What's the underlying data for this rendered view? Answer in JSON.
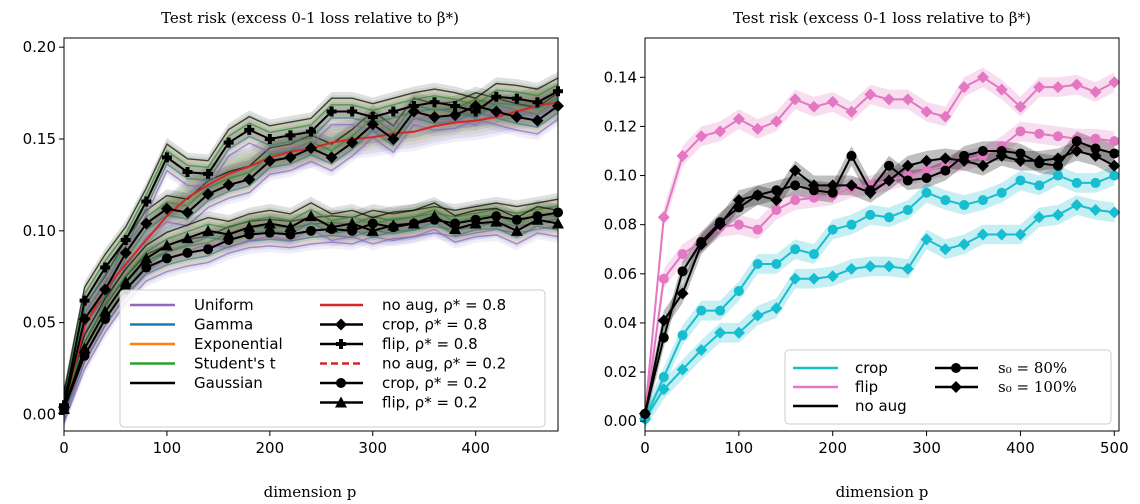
{
  "chart_data": [
    {
      "type": "line",
      "title": "Test risk (excess 0-1 loss relative to β*)",
      "xlabel": "dimension p",
      "ylabel": "",
      "xlim": [
        0,
        480
      ],
      "ylim": [
        -0.009,
        0.205
      ],
      "x_ticks": [
        "0",
        "100",
        "200",
        "300",
        "400"
      ],
      "y_ticks": [
        "0.00",
        "0.05",
        "0.10",
        "0.15",
        "0.20"
      ],
      "grid": false,
      "legend_position": "bottom-right",
      "legend": {
        "distributions": [
          {
            "label": "Uniform",
            "color": "#9467bd"
          },
          {
            "label": "Gamma",
            "color": "#1f77b4"
          },
          {
            "label": "Exponential",
            "color": "#ff7f0e"
          },
          {
            "label": "Student's t",
            "color": "#2ca02c"
          },
          {
            "label": "Gaussian",
            "color": "#000000"
          }
        ],
        "methods": [
          {
            "label": "no aug, ρ* = 0.8",
            "color": "#d62728",
            "style": "solid",
            "marker": "none"
          },
          {
            "label": "crop, ρ* = 0.8",
            "color": "#000000",
            "style": "solid",
            "marker": "diamond"
          },
          {
            "label": "flip, ρ* = 0.8",
            "color": "#000000",
            "style": "solid",
            "marker": "plus"
          },
          {
            "label": "no aug, ρ* = 0.2",
            "color": "#d62728",
            "style": "dashed",
            "marker": "none"
          },
          {
            "label": "crop, ρ* = 0.2",
            "color": "#000000",
            "style": "solid",
            "marker": "circle"
          },
          {
            "label": "flip, ρ* = 0.2",
            "color": "#000000",
            "style": "solid",
            "marker": "triangle"
          }
        ]
      },
      "x": [
        0,
        20,
        40,
        60,
        80,
        100,
        120,
        140,
        160,
        180,
        200,
        220,
        240,
        260,
        280,
        300,
        320,
        340,
        360,
        380,
        400,
        420,
        440,
        460,
        480
      ],
      "series": [
        {
          "name": "no aug, ρ* = 0.8",
          "color": "#d62728",
          "marker": "none",
          "band": true,
          "values": [
            0.004,
            0.048,
            0.068,
            0.082,
            0.095,
            0.108,
            0.118,
            0.125,
            0.131,
            0.135,
            0.14,
            0.143,
            0.145,
            0.148,
            0.15,
            0.151,
            0.153,
            0.154,
            0.157,
            0.159,
            0.16,
            0.162,
            0.165,
            0.168,
            0.17
          ]
        },
        {
          "name": "crop, ρ* = 0.8",
          "color": "#000000",
          "marker": "diamond",
          "band": true,
          "values": [
            0.004,
            0.052,
            0.068,
            0.088,
            0.104,
            0.112,
            0.11,
            0.12,
            0.125,
            0.128,
            0.138,
            0.14,
            0.145,
            0.14,
            0.148,
            0.158,
            0.15,
            0.165,
            0.162,
            0.163,
            0.168,
            0.165,
            0.162,
            0.16,
            0.168
          ]
        },
        {
          "name": "flip, ρ* = 0.8",
          "color": "#000000",
          "marker": "plus",
          "band": true,
          "values": [
            0.005,
            0.062,
            0.08,
            0.095,
            0.116,
            0.14,
            0.132,
            0.131,
            0.148,
            0.155,
            0.15,
            0.152,
            0.154,
            0.165,
            0.165,
            0.162,
            0.165,
            0.168,
            0.17,
            0.168,
            0.165,
            0.173,
            0.172,
            0.17,
            0.176
          ]
        },
        {
          "name": "crop, ρ* = 0.2",
          "color": "#000000",
          "marker": "circle",
          "band": true,
          "values": [
            0.003,
            0.032,
            0.052,
            0.068,
            0.08,
            0.085,
            0.088,
            0.09,
            0.095,
            0.098,
            0.099,
            0.098,
            0.1,
            0.101,
            0.1,
            0.104,
            0.102,
            0.104,
            0.106,
            0.104,
            0.106,
            0.108,
            0.106,
            0.108,
            0.11
          ]
        },
        {
          "name": "flip, ρ* = 0.2",
          "color": "#000000",
          "marker": "triangle",
          "band": true,
          "values": [
            0.003,
            0.036,
            0.056,
            0.072,
            0.085,
            0.092,
            0.096,
            0.1,
            0.098,
            0.102,
            0.104,
            0.102,
            0.108,
            0.102,
            0.104,
            0.1,
            0.103,
            0.104,
            0.108,
            0.101,
            0.104,
            0.105,
            0.1,
            0.106,
            0.104
          ]
        }
      ]
    },
    {
      "type": "line",
      "title": "Test risk (excess 0-1 loss relative to β*)",
      "xlabel": "dimension p",
      "ylabel": "",
      "xlim": [
        0,
        505
      ],
      "ylim": [
        -0.004,
        0.156
      ],
      "x_ticks": [
        "0",
        "100",
        "200",
        "300",
        "400",
        "500"
      ],
      "y_ticks": [
        "0.00",
        "0.02",
        "0.04",
        "0.06",
        "0.08",
        "0.10",
        "0.12",
        "0.14"
      ],
      "grid": false,
      "legend_position": "bottom-right",
      "legend": {
        "methods": [
          {
            "label": "crop",
            "color": "#17becf"
          },
          {
            "label": "flip",
            "color": "#e377c2"
          },
          {
            "label": "no aug",
            "color": "#000000"
          }
        ],
        "sizes": [
          {
            "label": "s₀ = 80%",
            "marker": "circle"
          },
          {
            "label": "s₀ = 100%",
            "marker": "diamond"
          }
        ]
      },
      "x": [
        0,
        20,
        40,
        60,
        80,
        100,
        120,
        140,
        160,
        180,
        200,
        220,
        240,
        260,
        280,
        300,
        320,
        340,
        360,
        380,
        400,
        420,
        440,
        460,
        480,
        500
      ],
      "series": [
        {
          "name": "flip, s₀ = 100%",
          "color": "#e377c2",
          "marker": "diamond",
          "values": [
            0.003,
            0.083,
            0.108,
            0.116,
            0.118,
            0.123,
            0.119,
            0.122,
            0.131,
            0.128,
            0.13,
            0.126,
            0.133,
            0.131,
            0.131,
            0.126,
            0.124,
            0.136,
            0.14,
            0.135,
            0.128,
            0.136,
            0.136,
            0.137,
            0.134,
            0.138
          ]
        },
        {
          "name": "flip, s₀ = 80%",
          "color": "#e377c2",
          "marker": "circle",
          "values": [
            0.002,
            0.058,
            0.068,
            0.073,
            0.079,
            0.08,
            0.078,
            0.086,
            0.09,
            0.091,
            0.092,
            0.095,
            0.096,
            0.098,
            0.1,
            0.102,
            0.104,
            0.106,
            0.108,
            0.112,
            0.118,
            0.117,
            0.116,
            0.115,
            0.115,
            0.114
          ]
        },
        {
          "name": "crop, s₀ = 80%",
          "color": "#17becf",
          "marker": "circle",
          "values": [
            0.001,
            0.018,
            0.035,
            0.045,
            0.045,
            0.053,
            0.064,
            0.064,
            0.07,
            0.068,
            0.078,
            0.08,
            0.084,
            0.083,
            0.086,
            0.093,
            0.09,
            0.088,
            0.09,
            0.093,
            0.098,
            0.096,
            0.1,
            0.097,
            0.097,
            0.1
          ]
        },
        {
          "name": "crop, s₀ = 100%",
          "color": "#17becf",
          "marker": "diamond",
          "values": [
            0.001,
            0.013,
            0.021,
            0.029,
            0.036,
            0.036,
            0.043,
            0.046,
            0.058,
            0.058,
            0.059,
            0.062,
            0.063,
            0.063,
            0.062,
            0.074,
            0.07,
            0.072,
            0.076,
            0.076,
            0.076,
            0.083,
            0.084,
            0.088,
            0.086,
            0.085
          ]
        },
        {
          "name": "no aug, s₀ = 80%",
          "color": "#000000",
          "marker": "circle",
          "values": [
            0.003,
            0.034,
            0.061,
            0.073,
            0.081,
            0.087,
            0.092,
            0.094,
            0.096,
            0.094,
            0.093,
            0.108,
            0.094,
            0.104,
            0.098,
            0.099,
            0.102,
            0.108,
            0.11,
            0.11,
            0.109,
            0.105,
            0.104,
            0.114,
            0.111,
            0.109
          ]
        },
        {
          "name": "no aug, s₀ = 100%",
          "color": "#000000",
          "marker": "diamond",
          "values": [
            0.003,
            0.041,
            0.052,
            0.072,
            0.08,
            0.09,
            0.092,
            0.09,
            0.102,
            0.096,
            0.096,
            0.096,
            0.093,
            0.098,
            0.104,
            0.106,
            0.107,
            0.106,
            0.104,
            0.108,
            0.106,
            0.106,
            0.107,
            0.11,
            0.108,
            0.104
          ]
        }
      ]
    }
  ]
}
